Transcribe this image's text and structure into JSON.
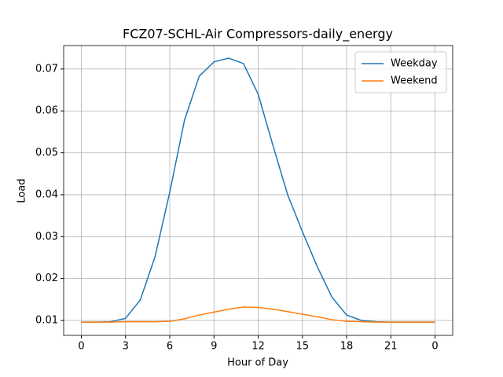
{
  "chart_data": {
    "type": "line",
    "title": "FCZ07-SCHL-Air Compressors-daily_energy",
    "x_label": "Hour of Day",
    "y_label": "Load",
    "x": [
      0,
      1,
      2,
      3,
      4,
      5,
      6,
      7,
      8,
      9,
      10,
      11,
      12,
      13,
      14,
      15,
      16,
      17,
      18,
      19,
      20,
      21,
      22,
      23,
      24
    ],
    "series": [
      {
        "name": "Weekday",
        "color": "#1f77b4",
        "values": [
          0.0096,
          0.0096,
          0.0097,
          0.0105,
          0.0149,
          0.0252,
          0.0406,
          0.0578,
          0.0683,
          0.0717,
          0.0726,
          0.0713,
          0.064,
          0.0518,
          0.04,
          0.0312,
          0.0229,
          0.0156,
          0.0113,
          0.01,
          0.0097,
          0.0096,
          0.0096,
          0.0096,
          0.0096
        ]
      },
      {
        "name": "Weekend",
        "color": "#ff7f0e",
        "values": [
          0.0096,
          0.0096,
          0.0096,
          0.0097,
          0.0097,
          0.0097,
          0.0098,
          0.0104,
          0.0113,
          0.012,
          0.0127,
          0.0132,
          0.0131,
          0.0127,
          0.0121,
          0.0115,
          0.0109,
          0.0102,
          0.0098,
          0.0097,
          0.0096,
          0.0096,
          0.0096,
          0.0096,
          0.0096
        ]
      }
    ],
    "xlim": [
      -1.2,
      25.2
    ],
    "ylim": [
      0.00644,
      0.0756
    ],
    "xticks": [
      0,
      3,
      6,
      9,
      12,
      15,
      18,
      21,
      {
        "value": 24,
        "label": "0"
      }
    ],
    "yticks": [
      0.01,
      0.02,
      0.03,
      0.04,
      0.05,
      0.06,
      0.07
    ],
    "grid": true,
    "legend": "upper-right"
  }
}
